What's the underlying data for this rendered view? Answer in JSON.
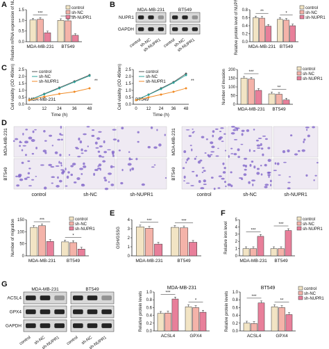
{
  "colors": {
    "control": "#f2e4c4",
    "shnc": "#f4b3a9",
    "shnupr1": "#e87f9a",
    "stroke": "#333333",
    "cell": "#7a5cc7",
    "bg_well": "#efeaf3"
  },
  "legend": [
    "control",
    "sh-NC",
    "sh-NUPR1"
  ],
  "panels": {
    "A": "A",
    "B": "B",
    "C": "C",
    "D": "D",
    "E": "E",
    "F": "F",
    "G": "G"
  },
  "chart_data": [
    {
      "id": "A",
      "type": "bar",
      "categories": [
        "MDA-MB-231",
        "BT549"
      ],
      "ylabel": "Relative mRNA expression of NUPR1",
      "ylim": [
        0,
        1.5
      ],
      "yticks": [
        "0.0",
        "0.5",
        "1.0",
        "1.5"
      ],
      "series": [
        {
          "name": "control",
          "values": [
            1.02,
            1.0
          ]
        },
        {
          "name": "sh-NC",
          "values": [
            1.05,
            0.98
          ]
        },
        {
          "name": "sh-NUPR1",
          "values": [
            0.42,
            0.3
          ]
        }
      ],
      "sig": [
        "***",
        "**"
      ]
    },
    {
      "id": "B",
      "type": "bar",
      "categories": [
        "MDA-MB-231",
        "BT549"
      ],
      "ylabel": "Relative protein level of NUPR1",
      "ylim": [
        0,
        0.8
      ],
      "yticks": [
        "0.0",
        "0.2",
        "0.4",
        "0.6",
        "0.8"
      ],
      "series": [
        {
          "name": "control",
          "values": [
            0.6,
            0.56
          ]
        },
        {
          "name": "sh-NC",
          "values": [
            0.59,
            0.54
          ]
        },
        {
          "name": "sh-NUPR1",
          "values": [
            0.39,
            0.4
          ]
        }
      ],
      "sig": [
        "**",
        "*"
      ]
    },
    {
      "id": "C1",
      "type": "line",
      "title": "MDA-MB-231",
      "xlabel": "Time (h)",
      "ylabel": "Cell viability (OD 490nm)",
      "x": [
        0,
        12,
        24,
        36,
        48
      ],
      "ylim": [
        0,
        2.5
      ],
      "yticks": [
        "0.0",
        "0.5",
        "1.0",
        "1.5",
        "2.0",
        "2.5"
      ],
      "series": [
        {
          "name": "control",
          "values": [
            0.3,
            0.75,
            1.2,
            1.65,
            2.1
          ]
        },
        {
          "name": "sh-NC",
          "values": [
            0.3,
            0.72,
            1.15,
            1.6,
            2.05
          ]
        },
        {
          "name": "sh-NUPR1",
          "values": [
            0.3,
            0.55,
            0.75,
            0.9,
            1.15
          ]
        }
      ],
      "sig": "**"
    },
    {
      "id": "C2",
      "type": "line",
      "title": "BT549",
      "xlabel": "Time (h)",
      "ylabel": "Cell viability (OD 490nm)",
      "x": [
        0,
        12,
        24,
        36,
        48
      ],
      "ylim": [
        0,
        2.5
      ],
      "yticks": [
        "0.0",
        "0.5",
        "1.0",
        "1.5",
        "2.0",
        "2.5"
      ],
      "series": [
        {
          "name": "control",
          "values": [
            0.3,
            0.7,
            1.15,
            1.6,
            2.2
          ]
        },
        {
          "name": "sh-NC",
          "values": [
            0.3,
            0.68,
            1.1,
            1.55,
            2.1
          ]
        },
        {
          "name": "sh-NUPR1",
          "values": [
            0.3,
            0.5,
            0.7,
            0.9,
            1.15
          ]
        }
      ],
      "sig": "**"
    },
    {
      "id": "Cbar",
      "type": "bar",
      "categories": [
        "MDA-MB-231",
        "BT549"
      ],
      "ylabel": "Number of invasion",
      "ylim": [
        0,
        200
      ],
      "yticks": [
        "0",
        "50",
        "100",
        "150",
        "200"
      ],
      "series": [
        {
          "name": "control",
          "values": [
            150,
            60
          ]
        },
        {
          "name": "sh-NC",
          "values": [
            145,
            58
          ]
        },
        {
          "name": "sh-NUPR1",
          "values": [
            80,
            25
          ]
        }
      ],
      "sig": [
        "***",
        "**"
      ]
    },
    {
      "id": "Dbar",
      "type": "bar",
      "categories": [
        "MDA-MB-231",
        "BT549"
      ],
      "ylabel": "Number of migration",
      "ylim": [
        0,
        150
      ],
      "yticks": [
        "0",
        "50",
        "100",
        "150"
      ],
      "series": [
        {
          "name": "control",
          "values": [
            118,
            58
          ]
        },
        {
          "name": "sh-NC",
          "values": [
            125,
            55
          ]
        },
        {
          "name": "sh-NUPR1",
          "values": [
            60,
            28
          ]
        }
      ],
      "sig": [
        "***",
        "*"
      ]
    },
    {
      "id": "E",
      "type": "bar",
      "categories": [
        "MDA-MB-231",
        "BT549"
      ],
      "ylabel": "GSH/GSSG",
      "ylim": [
        0,
        4
      ],
      "yticks": [
        "0",
        "1",
        "2",
        "3",
        "4"
      ],
      "series": [
        {
          "name": "control",
          "values": [
            3.2,
            3.15
          ]
        },
        {
          "name": "sh-NC",
          "values": [
            3.05,
            3.1
          ]
        },
        {
          "name": "sh-NUPR1",
          "values": [
            1.3,
            1.5
          ]
        }
      ],
      "sig": [
        "***",
        "***"
      ]
    },
    {
      "id": "F",
      "type": "bar",
      "categories": [
        "MDA-MB-231",
        "BT549"
      ],
      "ylabel": "Relative iron level",
      "ylim": [
        0,
        5
      ],
      "yticks": [
        "0",
        "1",
        "2",
        "3",
        "4",
        "5"
      ],
      "series": [
        {
          "name": "control",
          "values": [
            1.0,
            1.0
          ]
        },
        {
          "name": "sh-NC",
          "values": [
            1.0,
            1.0
          ]
        },
        {
          "name": "sh-NUPR1",
          "values": [
            2.7,
            3.5
          ]
        }
      ],
      "sig": [
        "***",
        "***"
      ]
    },
    {
      "id": "G1",
      "type": "bar",
      "title": "MDA-MB-231",
      "categories": [
        "ACSL4",
        "GPX4"
      ],
      "ylabel": "Relative protein levels",
      "ylim": [
        0,
        1.0
      ],
      "yticks": [
        "0.0",
        "0.2",
        "0.4",
        "0.6",
        "0.8",
        "1.0"
      ],
      "series": [
        {
          "name": "control",
          "values": [
            0.45,
            0.62
          ]
        },
        {
          "name": "sh-NC",
          "values": [
            0.46,
            0.6
          ]
        },
        {
          "name": "sh-NUPR1",
          "values": [
            0.82,
            0.48
          ]
        }
      ],
      "sig": [
        "***",
        "*"
      ]
    },
    {
      "id": "G2",
      "type": "bar",
      "title": "BT549",
      "categories": [
        "ACSL4",
        "GPX4"
      ],
      "ylabel": "Relative protein levels",
      "ylim": [
        0,
        1.0
      ],
      "yticks": [
        "0.0",
        "0.2",
        "0.4",
        "0.6",
        "0.8",
        "1.0"
      ],
      "series": [
        {
          "name": "control",
          "values": [
            0.2,
            0.62
          ]
        },
        {
          "name": "sh-NC",
          "values": [
            0.19,
            0.6
          ]
        },
        {
          "name": "sh-NUPR1",
          "values": [
            0.72,
            0.42
          ]
        }
      ],
      "sig": [
        "***",
        "**"
      ]
    }
  ],
  "blotB": {
    "cells": [
      "MDA-MB-231",
      "BT549"
    ],
    "rows": [
      "NUPR1",
      "GAPDH"
    ],
    "lanes": [
      "control",
      "sh-NC",
      "sh-NUPR1",
      "control",
      "sh-NC",
      "sh-NUPR1"
    ]
  },
  "blotG": {
    "cells": [
      "MDA-MB-231",
      "BT549"
    ],
    "rows": [
      "ACSL4",
      "GPX4",
      "GAPDH"
    ],
    "lanes": [
      "control",
      "sh-NC",
      "sh-NUPR1",
      "control",
      "sh-NC",
      "sh-NUPR1"
    ]
  },
  "micro": {
    "rows": [
      "MDA-MB-231",
      "BT549"
    ],
    "cols": [
      "control",
      "sh-NC",
      "sh-NUPR1"
    ]
  }
}
